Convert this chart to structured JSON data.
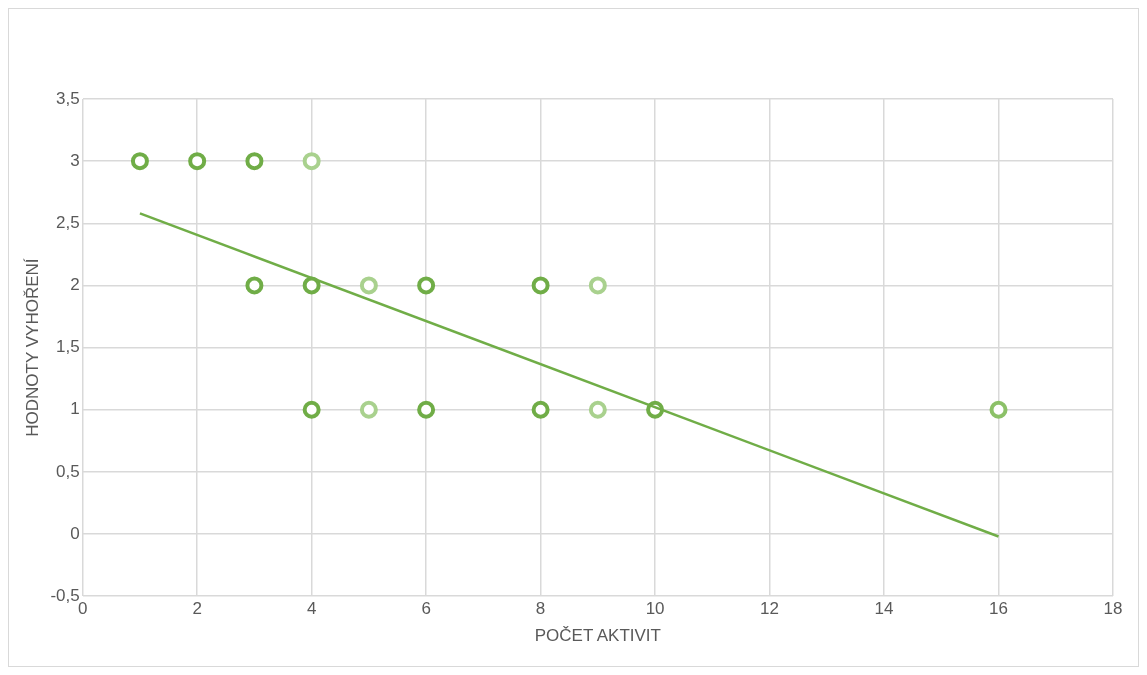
{
  "chart_data": {
    "type": "scatter",
    "xlabel": "POČET AKTIVIT",
    "ylabel": "HODNOTY VYHOŘENÍ",
    "series": [
      {
        "marker": "circle",
        "x": [
          1,
          2,
          3,
          4,
          3,
          4,
          5,
          6,
          8,
          9,
          4,
          5,
          6,
          8,
          9,
          10,
          16
        ],
        "values": [
          3,
          3,
          3,
          3,
          2,
          2,
          2,
          2,
          2,
          2,
          1,
          1,
          1,
          1,
          1,
          1,
          1
        ],
        "colors": [
          "#70ad47",
          "#70ad47",
          "#70ad47",
          "#a9d18e",
          "#70ad47",
          "#70ad47",
          "#a9d18e",
          "#70ad47",
          "#70ad47",
          "#a9d18e",
          "#70ad47",
          "#a9d18e",
          "#70ad47",
          "#70ad47",
          "#a9d18e",
          "#70ad47",
          "#8cc168"
        ]
      },
      {
        "type": "line",
        "marker": "none",
        "color": "#70ad47",
        "x": [
          1,
          16
        ],
        "values": [
          2.58,
          -0.02
        ]
      }
    ],
    "xlim": [
      0,
      18
    ],
    "xticks": [
      0,
      2,
      4,
      6,
      8,
      10,
      12,
      14,
      16,
      18
    ],
    "ylim": [
      -0.5,
      3.5
    ],
    "yticks": [
      {
        "value": -0.5,
        "label": "-0,5"
      },
      0,
      {
        "value": 0.5,
        "label": "0,5"
      },
      1,
      {
        "value": 1.5,
        "label": "1,5"
      },
      2,
      {
        "value": 2.5,
        "label": "2,5"
      },
      3,
      {
        "value": 3.5,
        "label": "3,5"
      }
    ],
    "grid": true,
    "legend": false,
    "line_style": "solid"
  }
}
